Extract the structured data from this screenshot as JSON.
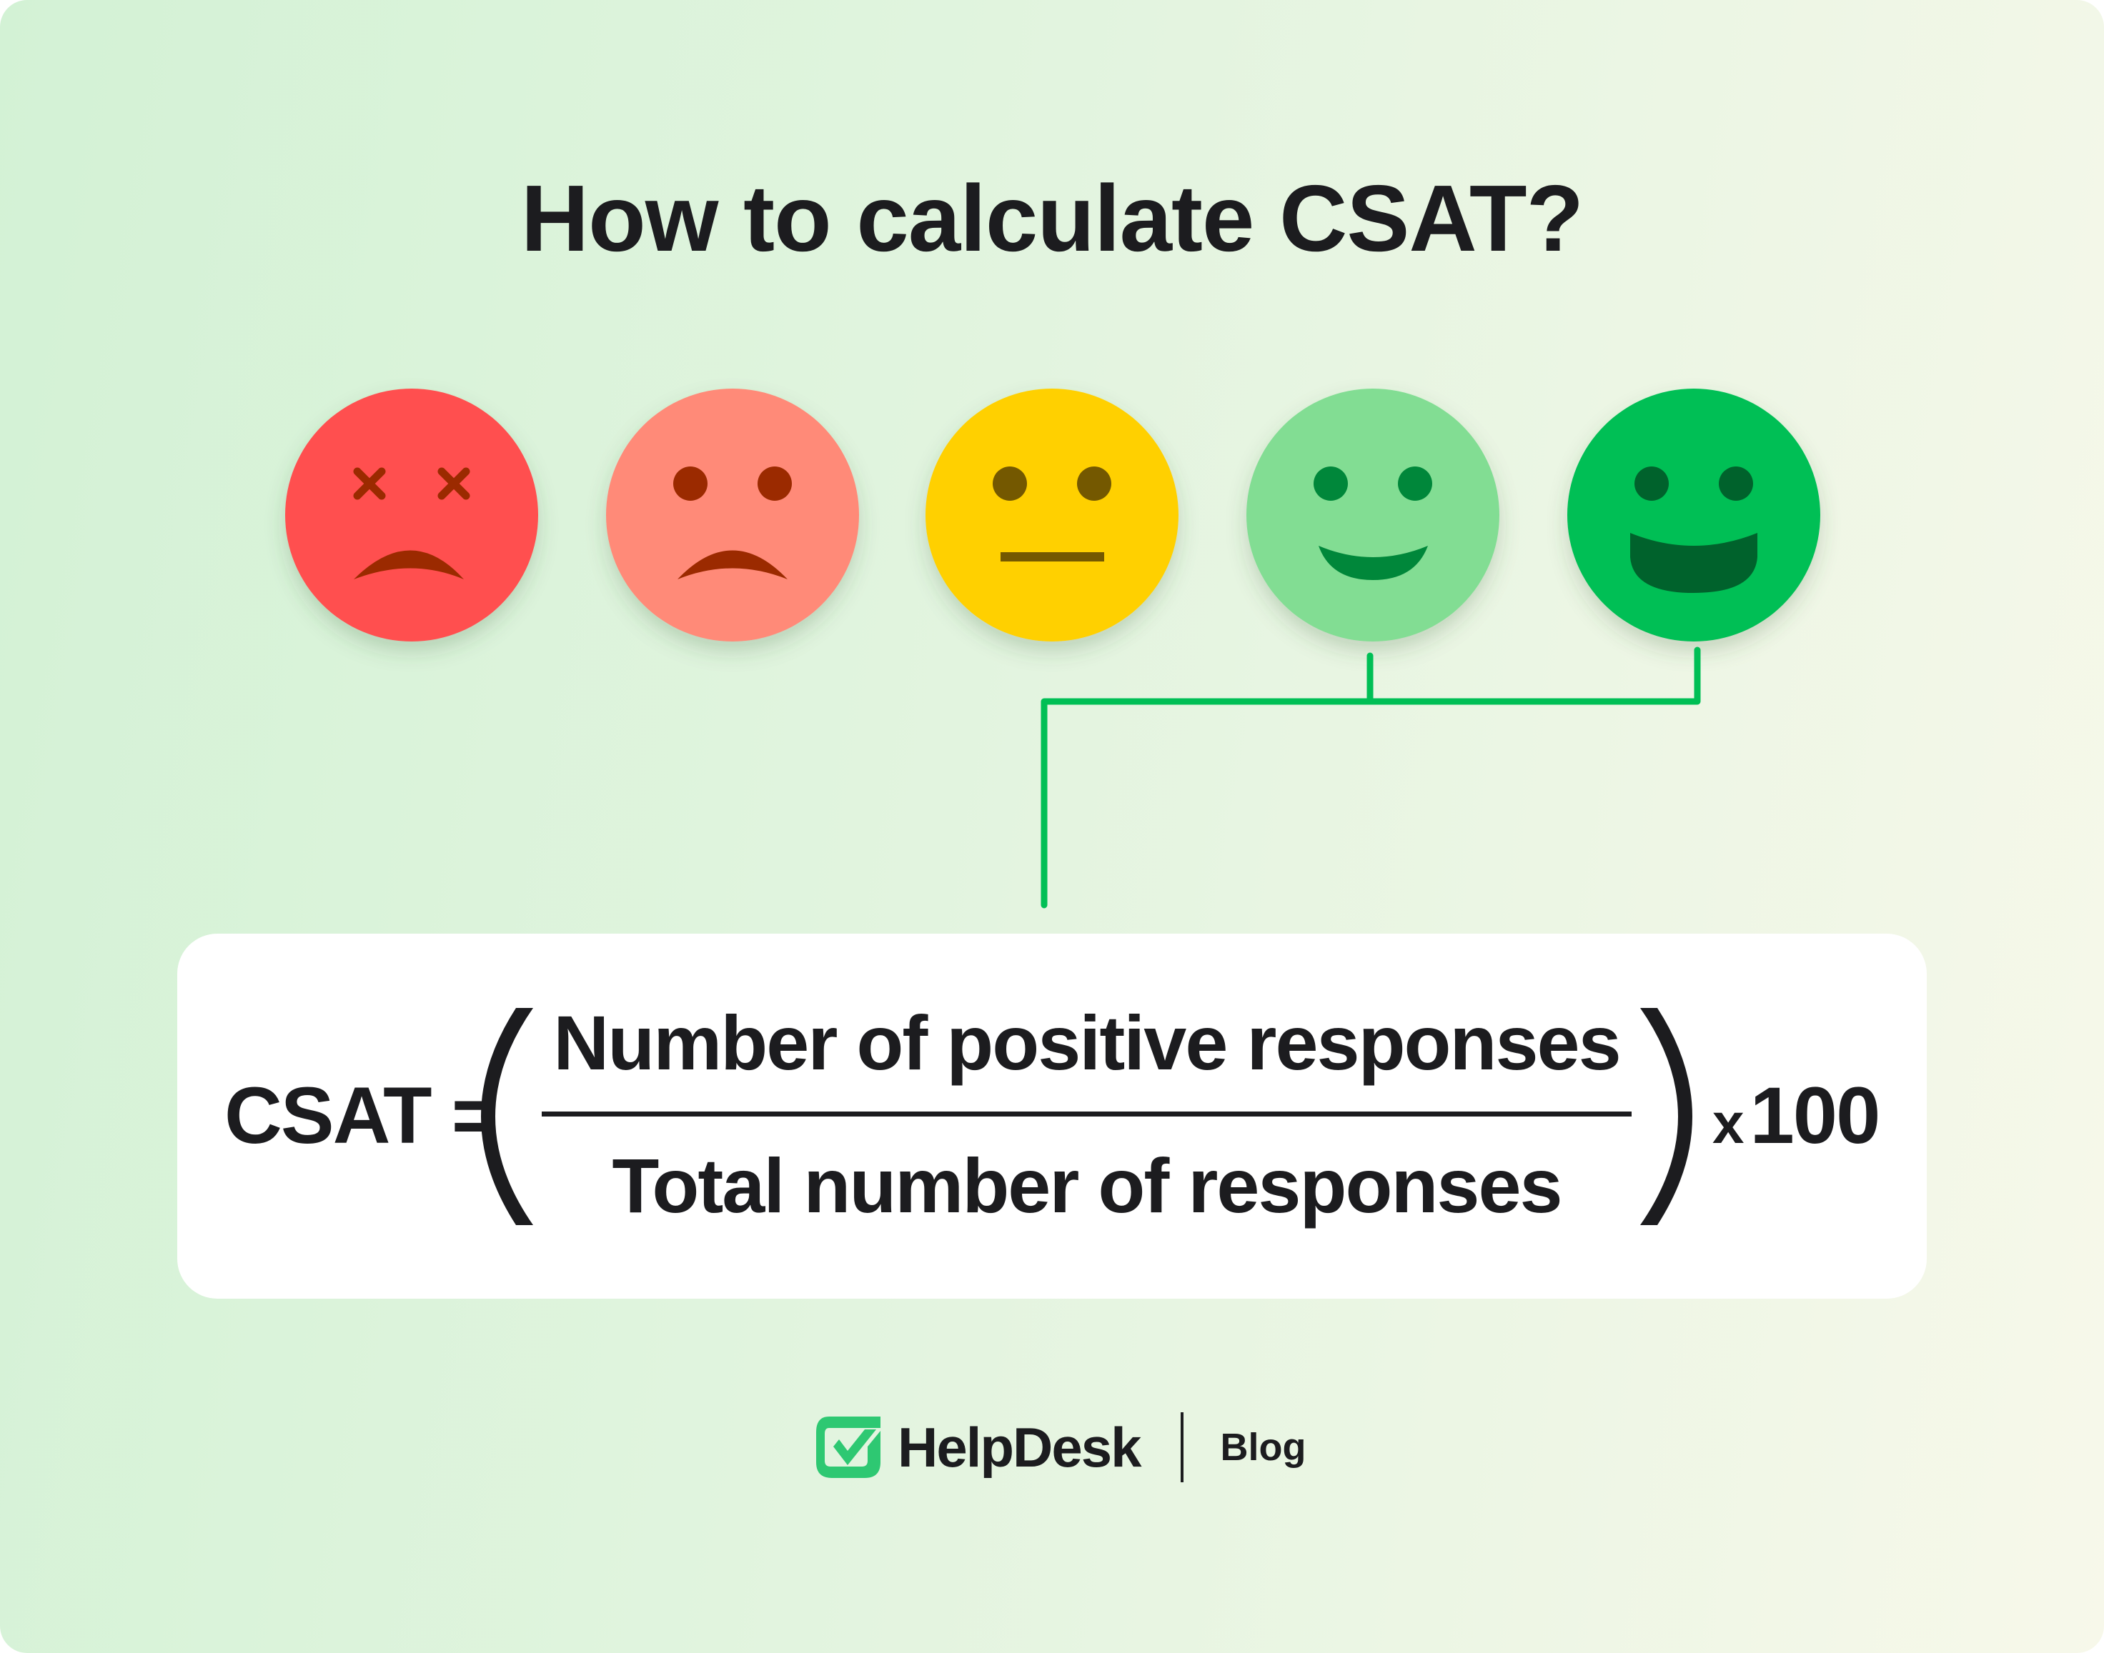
{
  "title": "How to calculate CSAT?",
  "faces": [
    {
      "name": "very-unsatisfied",
      "color": "#ff4f4f"
    },
    {
      "name": "unsatisfied",
      "color": "#ff8a78"
    },
    {
      "name": "neutral",
      "color": "#ffd000"
    },
    {
      "name": "satisfied",
      "color": "#82dd93"
    },
    {
      "name": "very-satisfied",
      "color": "#00bf55"
    }
  ],
  "connector_color": "#00bf55",
  "formula": {
    "lhs": "CSAT =",
    "numerator": "Number of positive responses",
    "denominator": "Total number of responses",
    "multiplier_sign": "x",
    "multiplier": "100"
  },
  "footer": {
    "brand": "HelpDesk",
    "section": "Blog",
    "brand_color": "#2ec872"
  }
}
